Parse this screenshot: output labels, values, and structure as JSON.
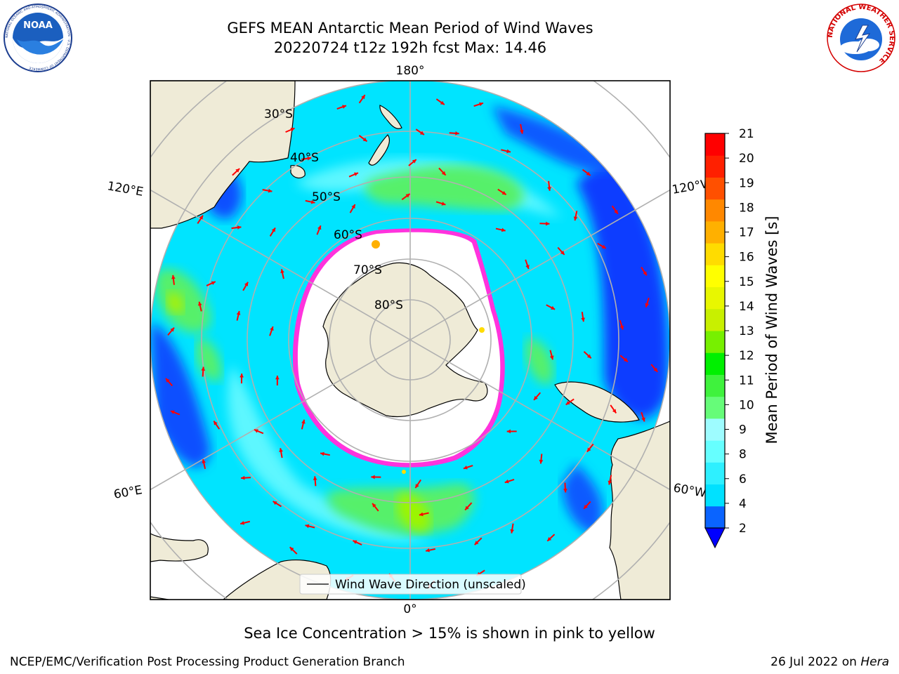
{
  "header": {
    "title_line1": "GEFS MEAN Antarctic Mean Period of Wind Waves",
    "title_line2": "20220724 t12z 192h fcst   Max: 14.46"
  },
  "logos": {
    "left": "NOAA",
    "left_ring_text": "NATIONAL OCEANIC AND ATMOSPHERIC ADMINISTRATION · U.S. DEPARTMENT OF COMMERCE",
    "right_ring_text": "NATIONAL WEATHER SERVICE"
  },
  "map": {
    "longitude_labels": {
      "top": "180°",
      "bottom": "0°",
      "upper_left": "120°E",
      "upper_right": "120°W",
      "lower_left": "60°E",
      "lower_right": "60°W"
    },
    "latitude_labels": [
      "30°S",
      "40°S",
      "50°S",
      "60°S",
      "70°S",
      "80°S"
    ],
    "legend_label": "Wind Wave Direction (unscaled)",
    "colors": {
      "land": "#efebd7",
      "sea_ice_interior": "#ffffff",
      "ice_edge": "#ff33dd",
      "arrow": "#ff0000",
      "graticule": "#b0b0b0"
    }
  },
  "colorbar": {
    "title": "Mean Period of Wind Waves [s]",
    "ticks": [
      "2",
      "4",
      "6",
      "8",
      "9",
      "10",
      "11",
      "12",
      "13",
      "14",
      "15",
      "16",
      "17",
      "18",
      "19",
      "20",
      "21"
    ],
    "extend": "min",
    "colors": [
      "#0a64ff",
      "#00e1ff",
      "#2ef0ff",
      "#66ffff",
      "#9efcff",
      "#66fc79",
      "#3ff23d",
      "#00f000",
      "#77f000",
      "#c8f000",
      "#e8f700",
      "#ffff00",
      "#ffdc00",
      "#ffb000",
      "#ff8800",
      "#ff5000",
      "#ff2000",
      "#ff0000"
    ],
    "extend_color": "#0000ff"
  },
  "footer": {
    "note": "Sea Ice Concentration > 15% is shown in pink to yellow",
    "credit": "NCEP/EMC/Verification Post Processing Product Generation Branch",
    "date": "26 Jul 2022 on ",
    "machine": "Hera"
  }
}
